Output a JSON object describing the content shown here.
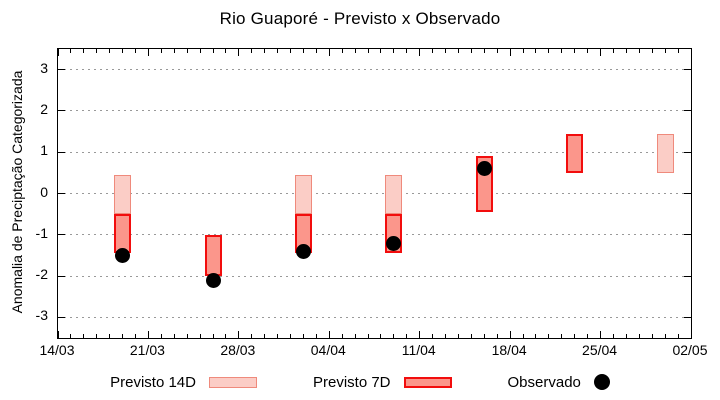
{
  "title": "Rio Guaporé - Previsto x Observado",
  "colors": {
    "background": "#ffffff",
    "axis": "#000000",
    "grid": "#999999",
    "text": "#000000",
    "previsto14_fill": "#fbcdc6",
    "previsto14_border": "#ef8a7c",
    "previsto7_fill": "#fb968b",
    "previsto7_border": "#f20d0d",
    "observado": "#000000"
  },
  "legend": {
    "items": [
      {
        "label": "Previsto 14D",
        "swatch": "range14"
      },
      {
        "label": "Previsto 7D",
        "swatch": "range7"
      },
      {
        "label": "Observado",
        "swatch": "dot"
      }
    ]
  },
  "chart_data": {
    "type": "bar",
    "subtype": "floating-range-bars-with-scatter",
    "title": "Rio Guaporé - Previsto x Observado",
    "xlabel": "",
    "ylabel": "Anomalia de Preciptação Categorizada",
    "ylim": [
      -3.5,
      3.5
    ],
    "yticks": [
      3,
      2,
      1,
      0,
      -1,
      -2,
      -3
    ],
    "grid": "dotted-horizontal-at-each-ytick",
    "legend_position": "below-plot",
    "xticks": [
      "14/03",
      "21/03",
      "28/03",
      "04/04",
      "11/04",
      "18/04",
      "25/04",
      "02/05"
    ],
    "x_total_days": 49,
    "x_days_per_tick": 7,
    "series": [
      {
        "name": "Previsto 14D",
        "type": "range_bar",
        "fill": "#fbcdc6",
        "border": "#ef8a7c",
        "border_px": 1,
        "points": [
          {
            "date": "19/03",
            "day": 5,
            "low": -0.5,
            "high": 0.45
          },
          {
            "date": "02/04",
            "day": 19,
            "low": -0.5,
            "high": 0.45
          },
          {
            "date": "09/04",
            "day": 26,
            "low": -0.5,
            "high": 0.45
          },
          {
            "date": "30/04",
            "day": 47,
            "low": 0.5,
            "high": 1.45
          }
        ]
      },
      {
        "name": "Previsto 7D",
        "type": "range_bar",
        "fill": "#fb968b",
        "border": "#f20d0d",
        "border_px": 2,
        "points": [
          {
            "date": "19/03",
            "day": 5,
            "low": -1.45,
            "high": -0.5
          },
          {
            "date": "26/03",
            "day": 12,
            "low": -2.0,
            "high": -1.0
          },
          {
            "date": "02/04",
            "day": 19,
            "low": -1.45,
            "high": -0.5
          },
          {
            "date": "09/04",
            "day": 26,
            "low": -1.45,
            "high": -0.5
          },
          {
            "date": "16/04",
            "day": 33,
            "low": -0.45,
            "high": 0.9
          },
          {
            "date": "23/04",
            "day": 40,
            "low": 0.5,
            "high": 1.45
          }
        ]
      },
      {
        "name": "Observado",
        "type": "scatter",
        "color": "#000000",
        "points": [
          {
            "date": "19/03",
            "day": 5,
            "y": -1.5
          },
          {
            "date": "26/03",
            "day": 12,
            "y": -2.1
          },
          {
            "date": "02/04",
            "day": 19,
            "y": -1.4
          },
          {
            "date": "09/04",
            "day": 26,
            "y": -1.2
          },
          {
            "date": "16/04",
            "day": 33,
            "y": 0.6
          }
        ]
      }
    ]
  }
}
